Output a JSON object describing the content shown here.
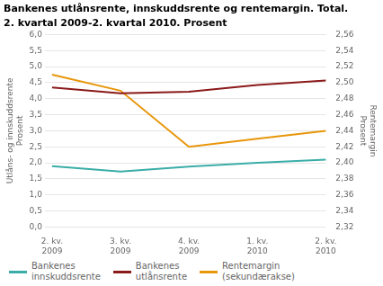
{
  "chart_data": {
    "type": "line",
    "title": "Bankenes utlånsrente, innskuddsrente og rentemargin. Total.",
    "subtitle": "2. kvartal 2009-2. kvartal 2010. Prosent",
    "categories": [
      "2. kv.\n2009",
      "3. kv.\n2009",
      "4. kv.\n2009",
      "1. kv.\n2010",
      "2. kv.\n2010"
    ],
    "ylabel": [
      "Utlåns- og innskuddsrente",
      "Prosent"
    ],
    "y2label": [
      "Rentemargin",
      "Prosent"
    ],
    "series": [
      {
        "name": "Bankenes\ninnskuddsrente",
        "color": "#3aada8",
        "values": [
          1.9,
          1.73,
          1.88,
          2.0,
          2.1
        ]
      },
      {
        "name": "Bankenes\nutlånsrente",
        "color": "#8b1a1a",
        "values": [
          4.35,
          4.17,
          4.22,
          4.43,
          4.57
        ]
      },
      {
        "name": "Rentemargin\n(sekundærakse)",
        "color": "#e8960a",
        "values": [
          2.51,
          2.49,
          2.42,
          2.43,
          2.44
        ],
        "axis": "y2"
      }
    ],
    "ylim": [
      0.0,
      6.0
    ],
    "yticks": [
      {
        "value": 0.0,
        "label": "0,0"
      },
      {
        "value": 0.5,
        "label": "0,5"
      },
      {
        "value": 1.0,
        "label": "1,0"
      },
      {
        "value": 1.5,
        "label": "1,5"
      },
      {
        "value": 2.0,
        "label": "2,0"
      },
      {
        "value": 2.5,
        "label": "2,5"
      },
      {
        "value": 3.0,
        "label": "3,0"
      },
      {
        "value": 3.5,
        "label": "3,5"
      },
      {
        "value": 4.0,
        "label": "4,0"
      },
      {
        "value": 4.5,
        "label": "4,5"
      },
      {
        "value": 5.0,
        "label": "5,0"
      },
      {
        "value": 5.5,
        "label": "5,5"
      },
      {
        "value": 6.0,
        "label": "6,0"
      }
    ],
    "y2lim": [
      2.32,
      2.56
    ],
    "y2ticks": [
      {
        "value": 2.32,
        "label": "2,32"
      },
      {
        "value": 2.34,
        "label": "2,34"
      },
      {
        "value": 2.36,
        "label": "2,36"
      },
      {
        "value": 2.38,
        "label": "2,38"
      },
      {
        "value": 2.4,
        "label": "2,40"
      },
      {
        "value": 2.42,
        "label": "2,42"
      },
      {
        "value": 2.44,
        "label": "2,44"
      },
      {
        "value": 2.46,
        "label": "2,46"
      },
      {
        "value": 2.48,
        "label": "2,48"
      },
      {
        "value": 2.5,
        "label": "2,50"
      },
      {
        "value": 2.52,
        "label": "2,52"
      },
      {
        "value": 2.54,
        "label": "2,54"
      },
      {
        "value": 2.56,
        "label": "2,56"
      }
    ],
    "grid": true,
    "legend": "bottom"
  }
}
